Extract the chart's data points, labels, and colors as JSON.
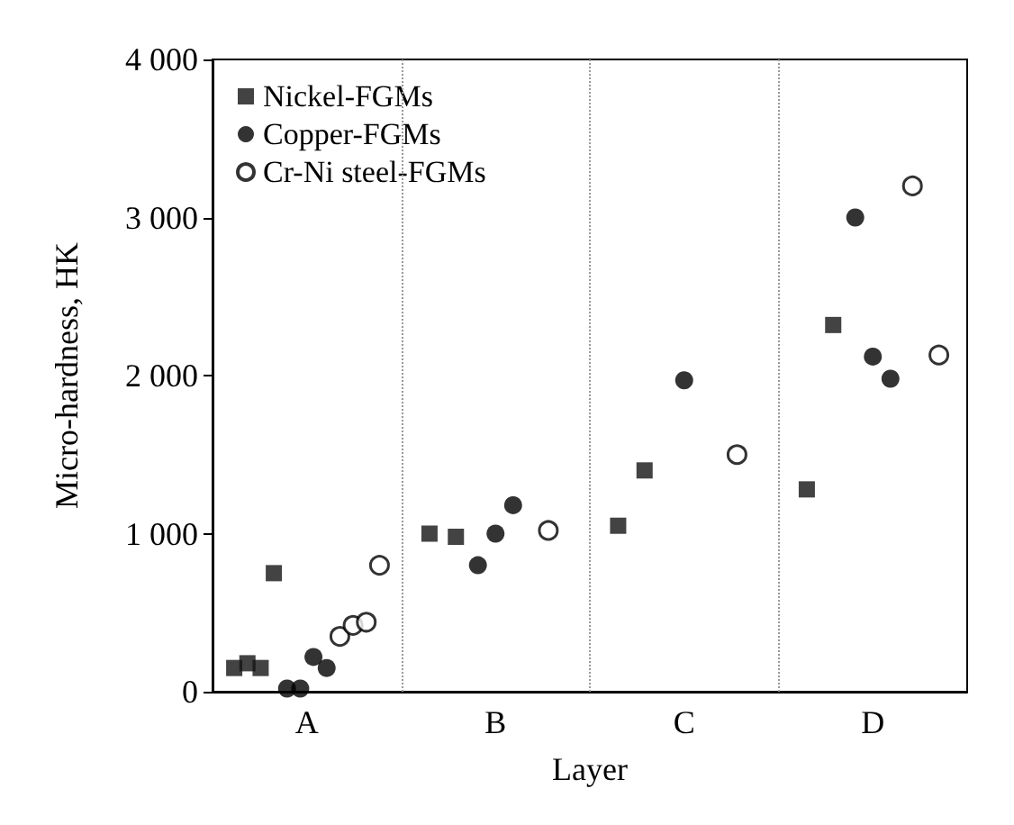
{
  "chart_data": {
    "type": "scatter",
    "xlabel": "Layer",
    "ylabel": "Micro-hardness, HK",
    "categories": [
      "A",
      "B",
      "C",
      "D"
    ],
    "ylim": [
      0,
      4000
    ],
    "yticks": [
      {
        "value": 0,
        "label": "0"
      },
      {
        "value": 1000,
        "label": "1 000"
      },
      {
        "value": 2000,
        "label": "2 000"
      },
      {
        "value": 3000,
        "label": "3 000"
      },
      {
        "value": 4000,
        "label": "4 000"
      }
    ],
    "grid": "x",
    "legend": "top left",
    "series": [
      {
        "name": "Nickel-FGMs",
        "color": "#141414",
        "marker": "square",
        "x": [
          "A",
          "A",
          "A",
          "A",
          "B",
          "B",
          "C",
          "C",
          "D",
          "D"
        ],
        "values": [
          150,
          180,
          150,
          750,
          1000,
          980,
          1050,
          1400,
          1280,
          2320
        ]
      },
      {
        "name": "Copper-FGMs",
        "color": "#000000",
        "marker": "circle",
        "x": [
          "A",
          "A",
          "A",
          "A",
          "B",
          "B",
          "B",
          "C",
          "D",
          "D",
          "D"
        ],
        "values": [
          20,
          20,
          220,
          150,
          800,
          1000,
          1180,
          1970,
          3000,
          2120,
          1980
        ]
      },
      {
        "name": "Cr-Ni steel-FGMs",
        "color": "#ffffff",
        "marker": "circle",
        "x": [
          "A",
          "A",
          "A",
          "A",
          "B",
          "C",
          "D",
          "D"
        ],
        "values": [
          350,
          420,
          440,
          800,
          1020,
          1500,
          3200,
          2130
        ]
      }
    ]
  }
}
